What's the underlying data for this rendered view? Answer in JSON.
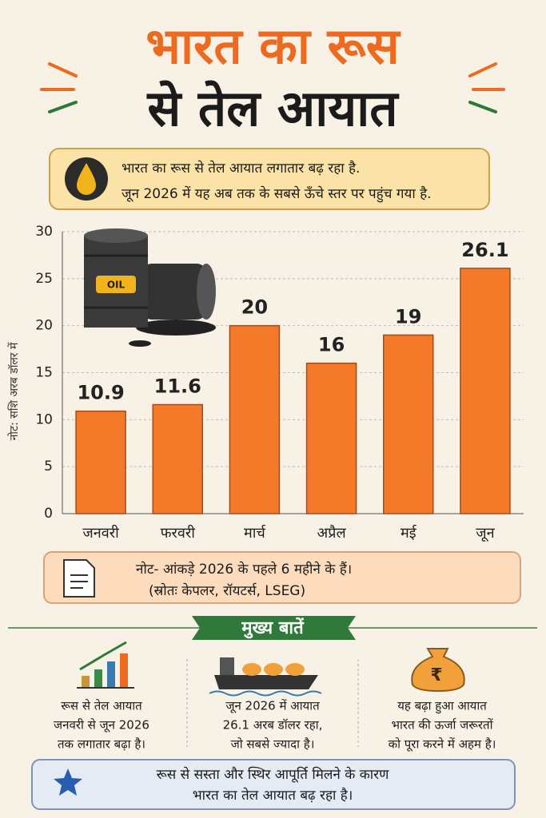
{
  "title_line1": "भारत का रूस",
  "title_line2": "से तेल आयात",
  "intro": [
    "भारत का रूस से तेल आयात लगातार बढ़ रहा है.",
    "जून 2026 में यह अब तक के सबसे ऊँचे स्तर पर पहुंच गया है."
  ],
  "chart_data": {
    "type": "bar",
    "y_label": "नोट: सशि अरब डॉलर में",
    "categories": [
      "जनवरी",
      "फरवरी",
      "मार्च",
      "अप्रैल",
      "मई",
      "जून"
    ],
    "values": [
      10.9,
      11.6,
      20,
      16,
      19,
      26.1
    ],
    "color": "#f47a2a",
    "ylim": [
      0,
      30
    ],
    "yticks": [
      0,
      5,
      10,
      15,
      20,
      25,
      30
    ],
    "grid": true
  },
  "note": [
    "नोट- आंकड़े 2026 के पहले 6 महीने के हैं।",
    "(स्रोतः केपलर, रॉयटर्स, LSEG)"
  ],
  "key_points": {
    "title": "मुख्य बातें",
    "items": [
      [
        "रूस से तेल आयात",
        "जनवरी से जून 2026",
        "तक लगातार बढ़ा है।"
      ],
      [
        "जून 2026 में आयात",
        "26.1 अरब डॉलर रहा,",
        "जो सबसे ज्यादा है।"
      ],
      [
        "यह बढ़ा हुआ आयात",
        "भारत की ऊर्जा जरूरतों",
        "को पूरा करने में अहम है।"
      ]
    ]
  },
  "footer": [
    "रूस से सस्ता और स्थिर आपूर्ति मिलने के कारण",
    "भारत का तेल आयात बढ़ रहा है।"
  ]
}
